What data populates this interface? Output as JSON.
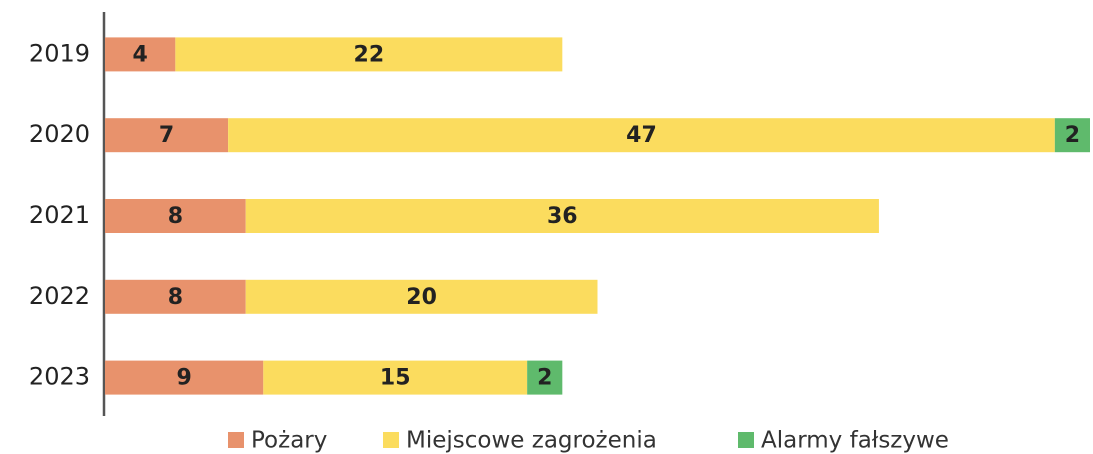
{
  "chart_data": {
    "type": "stacked-bar",
    "orientation": "horizontal",
    "categories": [
      "2019",
      "2020",
      "2021",
      "2022",
      "2023"
    ],
    "series": [
      {
        "name": "Pożary",
        "color": "#e8926c",
        "values": [
          4,
          7,
          8,
          8,
          9
        ]
      },
      {
        "name": "Miejscowe zagrożenia",
        "color": "#fbdc5e",
        "values": [
          22,
          47,
          36,
          20,
          15
        ]
      },
      {
        "name": "Alarmy fałszywe",
        "color": "#5fba6c",
        "values": [
          null,
          2,
          null,
          null,
          2
        ]
      }
    ],
    "legend": "bottom"
  }
}
